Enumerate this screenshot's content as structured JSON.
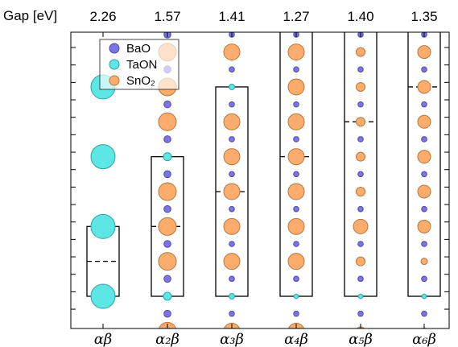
{
  "chart_data": {
    "type": "scatter",
    "y_label": "Gap [eV]",
    "columns": [
      {
        "label": "αβ",
        "gap": "2.26",
        "count": 1
      },
      {
        "label": "α₂β",
        "gap": "1.57",
        "count": 2
      },
      {
        "label": "α₃β",
        "gap": "1.41",
        "count": 3
      },
      {
        "label": "α₄β",
        "gap": "1.27",
        "count": 4
      },
      {
        "label": "α₅β",
        "gap": "1.40",
        "count": 5
      },
      {
        "label": "α₆β",
        "gap": "1.35",
        "count": 6
      }
    ],
    "legend": [
      {
        "name": "BaO",
        "color": "#7b74e2"
      },
      {
        "name": "TaON",
        "color": "#5ce6e6"
      },
      {
        "name": "SnO₂",
        "color": "#fdac6b"
      }
    ],
    "colors": {
      "bao": "#7b74e2",
      "bao_edge": "#4f49a8",
      "taon": "#5ce6e6",
      "taon_edge": "#2fa3a6",
      "sno2": "#fdac6b",
      "sno2_edge": "#b5773f"
    },
    "grid": false,
    "legend_position": "upper-left"
  }
}
